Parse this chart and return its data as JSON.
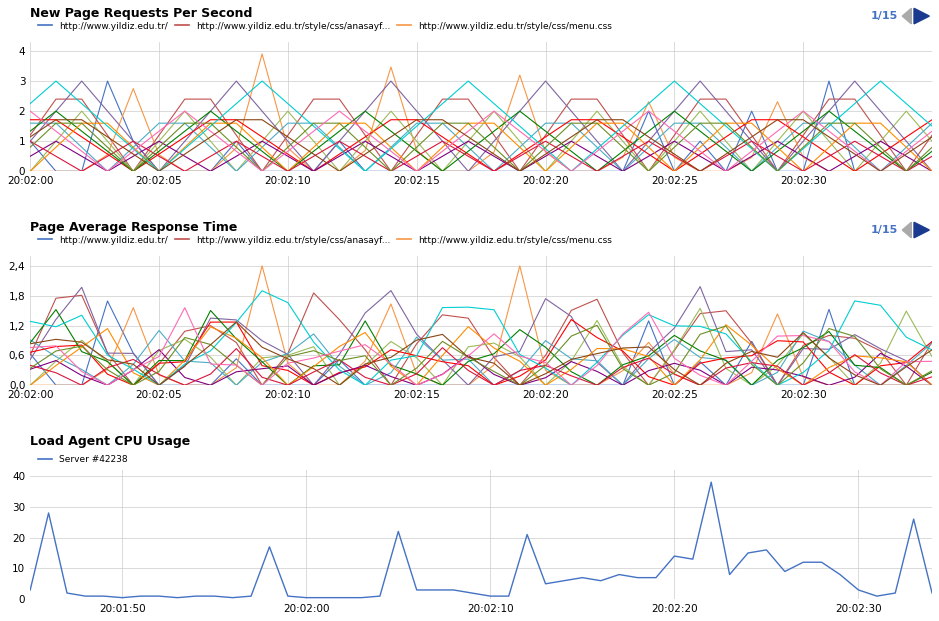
{
  "chart1_title": "New Page Requests Per Second",
  "chart2_title": "Page Average Response Time",
  "chart3_title": "Load Agent CPU Usage",
  "legend_label1": "http://www.yildiz.edu.tr/",
  "legend_label2": "http://www.yildiz.edu.tr/style/css/anasayf...",
  "legend_label3": "http://www.yildiz.edu.tr/style/css/menu.css",
  "legend_label_cpu": "Server #42238",
  "page_indicator": "1/15",
  "chart1_ylim": [
    0,
    4.3
  ],
  "chart2_ylim": [
    0,
    2.6
  ],
  "chart3_ylim": [
    0,
    42
  ],
  "chart1_xtick_labels": [
    "20:02:00",
    "20:02:05",
    "20:02:10",
    "20:02:15",
    "20:02:20",
    "20:02:25",
    "20:02:30"
  ],
  "chart2_xtick_labels": [
    "20:02:00",
    "20:02:05",
    "20:02:10",
    "20:02:15",
    "20:02:20",
    "20:02:25",
    "20:02:30"
  ],
  "chart3_xtick_labels": [
    "20:01:50",
    "20:02:00",
    "20:02:10",
    "20:02:20",
    "20:02:30"
  ],
  "bg_color": "#ffffff",
  "grid_color": "#cccccc",
  "cpu_color": "#4472c4",
  "title_fontsize": 9,
  "tick_fontsize": 7.5,
  "legend_fontsize": 6.5,
  "line_colors": [
    "#4472c4",
    "#c0504d",
    "#f79646",
    "#9bbb59",
    "#8064a2",
    "#4bacc6",
    "#ff0000",
    "#800080",
    "#008000",
    "#ff8c00",
    "#00ced1",
    "#dc143c",
    "#6b8e23",
    "#ff69b4",
    "#8b4513"
  ],
  "nav_arrow_color": "#1a3a8f",
  "nav_gray_color": "#aaaaaa",
  "nav_text_color": "#4472c4"
}
